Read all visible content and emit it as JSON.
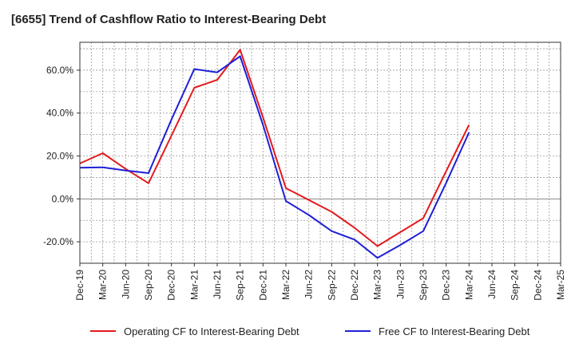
{
  "title": "[6655]  Trend of Cashflow Ratio to Interest-Bearing Debt",
  "chart_data": {
    "type": "line",
    "categories": [
      "Dec-19",
      "Mar-20",
      "Jun-20",
      "Sep-20",
      "Dec-20",
      "Mar-21",
      "Jun-21",
      "Sep-21",
      "Dec-21",
      "Mar-22",
      "Jun-22",
      "Sep-22",
      "Dec-22",
      "Mar-23",
      "Jun-23",
      "Sep-23",
      "Dec-23",
      "Mar-24",
      "Jun-24",
      "Sep-24",
      "Dec-24",
      "Mar-25"
    ],
    "ylim": [
      -30,
      73
    ],
    "yticks": [
      -20,
      0,
      20,
      40,
      60
    ],
    "ytick_labels": [
      "-20.0%",
      "0.0%",
      "20.0%",
      "40.0%",
      "60.0%"
    ],
    "grid": true,
    "legend_position": "bottom",
    "series": [
      {
        "name": "Operating CF to Interest-Bearing Debt",
        "color": "#e31a1c",
        "values": [
          16.5,
          21.3,
          14.0,
          7.3,
          29.5,
          51.8,
          55.5,
          69.5,
          38.0,
          5.0,
          -0.5,
          -6.0,
          -13.5,
          -22.0,
          -15.5,
          -9.0,
          13.0,
          34.5,
          null,
          null,
          null,
          null
        ]
      },
      {
        "name": "Free CF to Interest-Bearing Debt",
        "color": "#1f1fd6",
        "values": [
          14.5,
          14.7,
          13.2,
          12.0,
          37.0,
          60.5,
          59.0,
          66.5,
          34.5,
          -1.0,
          -7.5,
          -15.0,
          -19.0,
          -27.5,
          -21.5,
          -15.0,
          7.5,
          31.0,
          null,
          null,
          null,
          null
        ]
      }
    ]
  }
}
